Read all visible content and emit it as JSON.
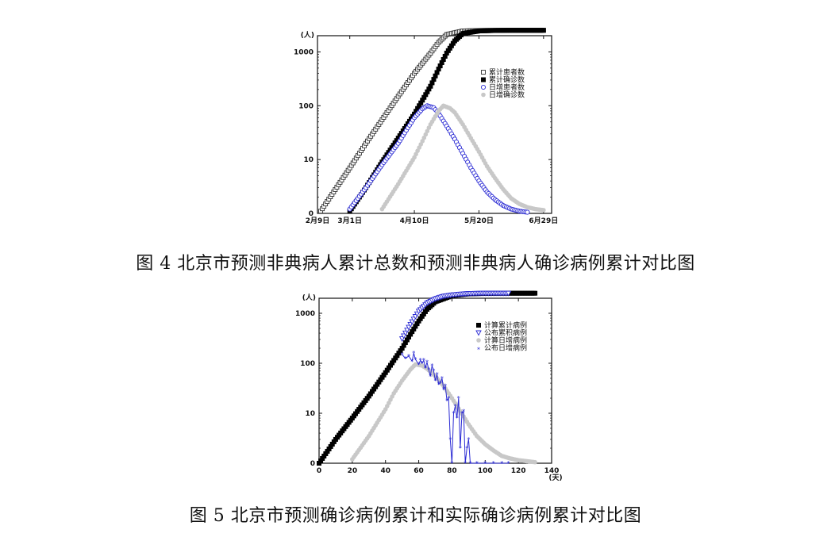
{
  "figure4": {
    "caption": "图 4  北京市预测非典病人累计总数和预测非典病人确诊病例累计对比图",
    "chart_data": {
      "type": "scatter",
      "yscale": "log",
      "ylim": [
        1,
        2000
      ],
      "y_unit_label": "(人)",
      "y_ticks": [
        {
          "value": 1,
          "label": "0"
        },
        {
          "value": 10,
          "label": "10"
        },
        {
          "value": 100,
          "label": "100"
        },
        {
          "value": 1000,
          "label": "1000"
        }
      ],
      "x_range_days": [
        0,
        145
      ],
      "x_ticks": [
        {
          "day": 0,
          "label": "2月9日"
        },
        {
          "day": 20,
          "label": "3月1日"
        },
        {
          "day": 60,
          "label": "4月10日"
        },
        {
          "day": 100,
          "label": "5月20日"
        },
        {
          "day": 140,
          "label": "6月29日"
        }
      ],
      "legend_position": "top-right",
      "legend": [
        "累计患者数",
        "累计确诊数",
        "日增患者数",
        "日增确诊数"
      ],
      "series": [
        {
          "name": "累计患者数",
          "marker": "hollow-square",
          "color": "#333333",
          "points": [
            [
              2,
              1.1
            ],
            [
              10,
              2.5
            ],
            [
              20,
              7
            ],
            [
              30,
              20
            ],
            [
              40,
              55
            ],
            [
              50,
              150
            ],
            [
              60,
              400
            ],
            [
              70,
              950
            ],
            [
              75,
              1500
            ],
            [
              80,
              2100
            ],
            [
              90,
              2450
            ],
            [
              100,
              2500
            ],
            [
              110,
              2520
            ],
            [
              120,
              2520
            ],
            [
              130,
              2520
            ],
            [
              140,
              2520
            ]
          ]
        },
        {
          "name": "累计确诊数",
          "marker": "filled-square",
          "color": "#000000",
          "points": [
            [
              20,
              1.1
            ],
            [
              30,
              3
            ],
            [
              40,
              9
            ],
            [
              50,
              25
            ],
            [
              60,
              70
            ],
            [
              70,
              230
            ],
            [
              75,
              480
            ],
            [
              80,
              950
            ],
            [
              85,
              1600
            ],
            [
              90,
              2200
            ],
            [
              100,
              2450
            ],
            [
              110,
              2500
            ],
            [
              120,
              2520
            ],
            [
              130,
              2520
            ],
            [
              140,
              2520
            ]
          ]
        },
        {
          "name": "日增患者数",
          "marker": "hollow-circle",
          "color": "#2a2ad4",
          "points": [
            [
              20,
              1.2
            ],
            [
              30,
              3
            ],
            [
              40,
              8
            ],
            [
              50,
              20
            ],
            [
              55,
              35
            ],
            [
              60,
              60
            ],
            [
              65,
              88
            ],
            [
              68,
              100
            ],
            [
              72,
              92
            ],
            [
              75,
              72
            ],
            [
              80,
              42
            ],
            [
              85,
              24
            ],
            [
              90,
              13
            ],
            [
              95,
              7
            ],
            [
              100,
              4
            ],
            [
              105,
              2.5
            ],
            [
              110,
              1.8
            ],
            [
              115,
              1.4
            ],
            [
              120,
              1.2
            ],
            [
              125,
              1.1
            ],
            [
              130,
              1.05
            ]
          ]
        },
        {
          "name": "日增确诊数",
          "marker": "filled-circle",
          "color": "#c8c8c8",
          "points": [
            [
              40,
              1.2
            ],
            [
              50,
              3.5
            ],
            [
              60,
              11
            ],
            [
              65,
              22
            ],
            [
              70,
              45
            ],
            [
              75,
              80
            ],
            [
              78,
              100
            ],
            [
              82,
              90
            ],
            [
              85,
              75
            ],
            [
              90,
              45
            ],
            [
              95,
              25
            ],
            [
              100,
              14
            ],
            [
              105,
              7.5
            ],
            [
              110,
              4.5
            ],
            [
              115,
              2.8
            ],
            [
              120,
              1.9
            ],
            [
              125,
              1.5
            ],
            [
              130,
              1.3
            ],
            [
              135,
              1.2
            ],
            [
              140,
              1.15
            ]
          ]
        }
      ]
    }
  },
  "figure5": {
    "caption": "图 5  北京市预测确诊病例累计和实际确诊病例累计对比图",
    "chart_data": {
      "type": "scatter",
      "yscale": "log",
      "ylim": [
        1,
        2000
      ],
      "xlim": [
        0,
        140
      ],
      "y_unit_label": "(人)",
      "x_unit_label": "(天)",
      "y_ticks": [
        {
          "value": 1,
          "label": "0"
        },
        {
          "value": 10,
          "label": "10"
        },
        {
          "value": 100,
          "label": "100"
        },
        {
          "value": 1000,
          "label": "1000"
        }
      ],
      "x_ticks": [
        0,
        20,
        40,
        60,
        80,
        100,
        120,
        140
      ],
      "legend_position": "top-right",
      "legend": [
        "计算累计病例",
        "公布累积病例",
        "计算日增病例",
        "公布日增病例"
      ],
      "series": [
        {
          "name": "计算累计病例",
          "marker": "filled-square",
          "color": "#000000",
          "points": [
            [
              0,
              1
            ],
            [
              10,
              3
            ],
            [
              20,
              8
            ],
            [
              30,
              22
            ],
            [
              40,
              65
            ],
            [
              50,
              200
            ],
            [
              55,
              380
            ],
            [
              60,
              700
            ],
            [
              65,
              1200
            ],
            [
              70,
              1700
            ],
            [
              80,
              2250
            ],
            [
              90,
              2450
            ],
            [
              100,
              2500
            ],
            [
              110,
              2520
            ],
            [
              120,
              2520
            ],
            [
              130,
              2520
            ]
          ]
        },
        {
          "name": "公布累积病例",
          "marker": "hollow-triangle",
          "color": "#2a2ad4",
          "points": [
            [
              50,
              310
            ],
            [
              55,
              600
            ],
            [
              60,
              1100
            ],
            [
              65,
              1600
            ],
            [
              70,
              1950
            ],
            [
              75,
              2200
            ],
            [
              80,
              2330
            ],
            [
              85,
              2420
            ],
            [
              90,
              2480
            ],
            [
              95,
              2510
            ],
            [
              100,
              2520
            ],
            [
              105,
              2521
            ],
            [
              110,
              2521
            ],
            [
              114,
              2521
            ]
          ]
        },
        {
          "name": "计算日增病例",
          "marker": "filled-circle",
          "color": "#c8c8c8",
          "points": [
            [
              20,
              1.2
            ],
            [
              30,
              3.5
            ],
            [
              40,
              12
            ],
            [
              45,
              25
            ],
            [
              50,
              45
            ],
            [
              55,
              75
            ],
            [
              58,
              95
            ],
            [
              62,
              90
            ],
            [
              65,
              78
            ],
            [
              70,
              55
            ],
            [
              75,
              35
            ],
            [
              80,
              20
            ],
            [
              85,
              11
            ],
            [
              90,
              6
            ],
            [
              95,
              3.5
            ],
            [
              100,
              2.4
            ],
            [
              105,
              1.8
            ],
            [
              110,
              1.4
            ],
            [
              115,
              1.25
            ],
            [
              120,
              1.15
            ],
            [
              125,
              1.1
            ],
            [
              130,
              1.05
            ]
          ]
        },
        {
          "name": "公布日增病例",
          "marker": "star-line",
          "color": "#2a2ad4",
          "points": [
            [
              50,
              150
            ],
            [
              52,
              125
            ],
            [
              54,
              140
            ],
            [
              56,
              110
            ],
            [
              57,
              160
            ],
            [
              58,
              120
            ],
            [
              60,
              95
            ],
            [
              61,
              115
            ],
            [
              62,
              100
            ],
            [
              63,
              115
            ],
            [
              64,
              80
            ],
            [
              65,
              105
            ],
            [
              66,
              75
            ],
            [
              67,
              55
            ],
            [
              68,
              90
            ],
            [
              69,
              70
            ],
            [
              70,
              45
            ],
            [
              71,
              60
            ],
            [
              72,
              38
            ],
            [
              73,
              40
            ],
            [
              74,
              50
            ],
            [
              75,
              30
            ],
            [
              76,
              35
            ],
            [
              77,
              18
            ],
            [
              78,
              20
            ],
            [
              79,
              3
            ],
            [
              80,
              1
            ],
            [
              81,
              10
            ],
            [
              82,
              14
            ],
            [
              83,
              8
            ],
            [
              84,
              20
            ],
            [
              85,
              2
            ],
            [
              86,
              10
            ],
            [
              87,
              11
            ],
            [
              88,
              1
            ],
            [
              89,
              2
            ],
            [
              90,
              3
            ],
            [
              91,
              1
            ],
            [
              95,
              1
            ],
            [
              100,
              1
            ],
            [
              105,
              1
            ],
            [
              110,
              1
            ],
            [
              114,
              1
            ]
          ]
        }
      ]
    }
  }
}
